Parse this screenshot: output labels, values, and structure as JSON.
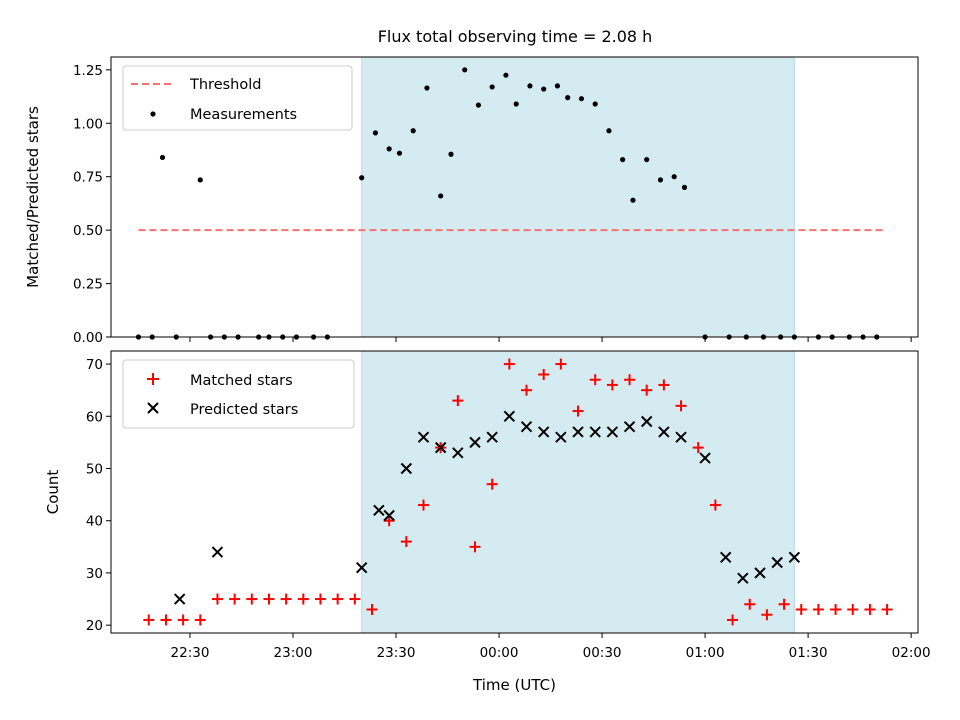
{
  "chart_data": [
    {
      "type": "scatter",
      "title": "Flux total observing time = 2.08 h",
      "xlabel": "",
      "ylabel": "Matched/Predicted stars",
      "ylim": [
        0,
        1.31
      ],
      "yticks": [
        0,
        0.25,
        0.5,
        0.75,
        1.0,
        1.25
      ],
      "ytick_labels": [
        "0.00",
        "0.25",
        "0.50",
        "0.75",
        "1.00",
        "1.25"
      ],
      "legend_position": "upper-left",
      "shaded_span": {
        "x_start": "23:20",
        "x_end": "01:26",
        "color": "#d4ebf1"
      },
      "threshold": {
        "name": "Threshold",
        "y": 0.5,
        "x_start": "22:15",
        "x_end": "01:52",
        "color": "#f87272"
      },
      "series": [
        {
          "name": "Measurements",
          "color": "#000000",
          "points": [
            [
              "22:15",
              0
            ],
            [
              "22:19",
              0
            ],
            [
              "22:22",
              0.84
            ],
            [
              "22:26",
              0
            ],
            [
              "22:33",
              0.735
            ],
            [
              "22:36",
              0
            ],
            [
              "22:40",
              0
            ],
            [
              "22:44",
              0
            ],
            [
              "22:50",
              0
            ],
            [
              "22:53",
              0
            ],
            [
              "22:57",
              0
            ],
            [
              "23:01",
              0
            ],
            [
              "23:06",
              0
            ],
            [
              "23:10",
              0
            ],
            [
              "23:20",
              0.745
            ],
            [
              "23:24",
              0.955
            ],
            [
              "23:28",
              0.88
            ],
            [
              "23:31",
              0.86
            ],
            [
              "23:35",
              0.965
            ],
            [
              "23:39",
              1.165
            ],
            [
              "23:43",
              0.66
            ],
            [
              "23:46",
              0.855
            ],
            [
              "23:50",
              1.25
            ],
            [
              "23:54",
              1.085
            ],
            [
              "23:58",
              1.17
            ],
            [
              "00:02",
              1.225
            ],
            [
              "00:05",
              1.09
            ],
            [
              "00:09",
              1.175
            ],
            [
              "00:13",
              1.16
            ],
            [
              "00:17",
              1.175
            ],
            [
              "00:20",
              1.12
            ],
            [
              "00:24",
              1.115
            ],
            [
              "00:28",
              1.09
            ],
            [
              "00:32",
              0.965
            ],
            [
              "00:36",
              0.83
            ],
            [
              "00:39",
              0.64
            ],
            [
              "00:43",
              0.83
            ],
            [
              "00:47",
              0.735
            ],
            [
              "00:51",
              0.75
            ],
            [
              "00:54",
              0.7
            ],
            [
              "01:00",
              0
            ],
            [
              "01:07",
              0
            ],
            [
              "01:12",
              0
            ],
            [
              "01:17",
              0
            ],
            [
              "01:22",
              0
            ],
            [
              "01:26",
              0
            ],
            [
              "01:33",
              0
            ],
            [
              "01:37",
              0
            ],
            [
              "01:42",
              0
            ],
            [
              "01:46",
              0
            ],
            [
              "01:50",
              0
            ]
          ]
        }
      ]
    },
    {
      "type": "scatter",
      "title": "",
      "xlabel": "Time (UTC)",
      "ylabel": "Count",
      "ylim": [
        18.5,
        72.5
      ],
      "yticks": [
        20,
        30,
        40,
        50,
        60,
        70
      ],
      "ytick_labels": [
        "20",
        "30",
        "40",
        "50",
        "60",
        "70"
      ],
      "xlim": [
        "22:07",
        "02:02"
      ],
      "xticks": [
        "22:30",
        "23:00",
        "23:30",
        "00:00",
        "00:30",
        "01:00",
        "01:30",
        "02:00"
      ],
      "legend_position": "upper-left",
      "shaded_span": {
        "x_start": "23:20",
        "x_end": "01:26",
        "color": "#d4ebf1"
      },
      "series": [
        {
          "name": "Matched stars",
          "marker": "plus",
          "color": "#ff0000",
          "points": [
            [
              "22:18",
              21
            ],
            [
              "22:23",
              21
            ],
            [
              "22:28",
              21
            ],
            [
              "22:33",
              21
            ],
            [
              "22:38",
              25
            ],
            [
              "22:43",
              25
            ],
            [
              "22:48",
              25
            ],
            [
              "22:53",
              25
            ],
            [
              "22:58",
              25
            ],
            [
              "23:03",
              25
            ],
            [
              "23:08",
              25
            ],
            [
              "23:13",
              25
            ],
            [
              "23:18",
              25
            ],
            [
              "23:23",
              23
            ],
            [
              "23:28",
              40
            ],
            [
              "23:33",
              36
            ],
            [
              "23:38",
              43
            ],
            [
              "23:43",
              54
            ],
            [
              "23:48",
              63
            ],
            [
              "23:53",
              35
            ],
            [
              "23:58",
              47
            ],
            [
              "00:03",
              70
            ],
            [
              "00:08",
              65
            ],
            [
              "00:13",
              68
            ],
            [
              "00:18",
              70
            ],
            [
              "00:23",
              61
            ],
            [
              "00:28",
              67
            ],
            [
              "00:33",
              66
            ],
            [
              "00:38",
              67
            ],
            [
              "00:43",
              65
            ],
            [
              "00:48",
              66
            ],
            [
              "00:53",
              62
            ],
            [
              "00:58",
              54
            ],
            [
              "01:03",
              43
            ],
            [
              "01:08",
              21
            ],
            [
              "01:13",
              24
            ],
            [
              "01:18",
              22
            ],
            [
              "01:23",
              24
            ],
            [
              "01:28",
              23
            ],
            [
              "01:33",
              23
            ],
            [
              "01:38",
              23
            ],
            [
              "01:43",
              23
            ],
            [
              "01:48",
              23
            ],
            [
              "01:53",
              23
            ]
          ]
        },
        {
          "name": "Predicted stars",
          "marker": "x",
          "color": "#000000",
          "points": [
            [
              "22:27",
              25
            ],
            [
              "22:38",
              34
            ],
            [
              "23:20",
              31
            ],
            [
              "23:25",
              42
            ],
            [
              "23:28",
              41
            ],
            [
              "23:33",
              50
            ],
            [
              "23:38",
              56
            ],
            [
              "23:43",
              54
            ],
            [
              "23:48",
              53
            ],
            [
              "23:53",
              55
            ],
            [
              "23:58",
              56
            ],
            [
              "00:03",
              60
            ],
            [
              "00:08",
              58
            ],
            [
              "00:13",
              57
            ],
            [
              "00:18",
              56
            ],
            [
              "00:23",
              57
            ],
            [
              "00:28",
              57
            ],
            [
              "00:33",
              57
            ],
            [
              "00:38",
              58
            ],
            [
              "00:43",
              59
            ],
            [
              "00:48",
              57
            ],
            [
              "00:53",
              56
            ],
            [
              "01:00",
              52
            ],
            [
              "01:06",
              33
            ],
            [
              "01:11",
              29
            ],
            [
              "01:16",
              30
            ],
            [
              "01:21",
              32
            ],
            [
              "01:26",
              33
            ]
          ]
        }
      ]
    }
  ]
}
